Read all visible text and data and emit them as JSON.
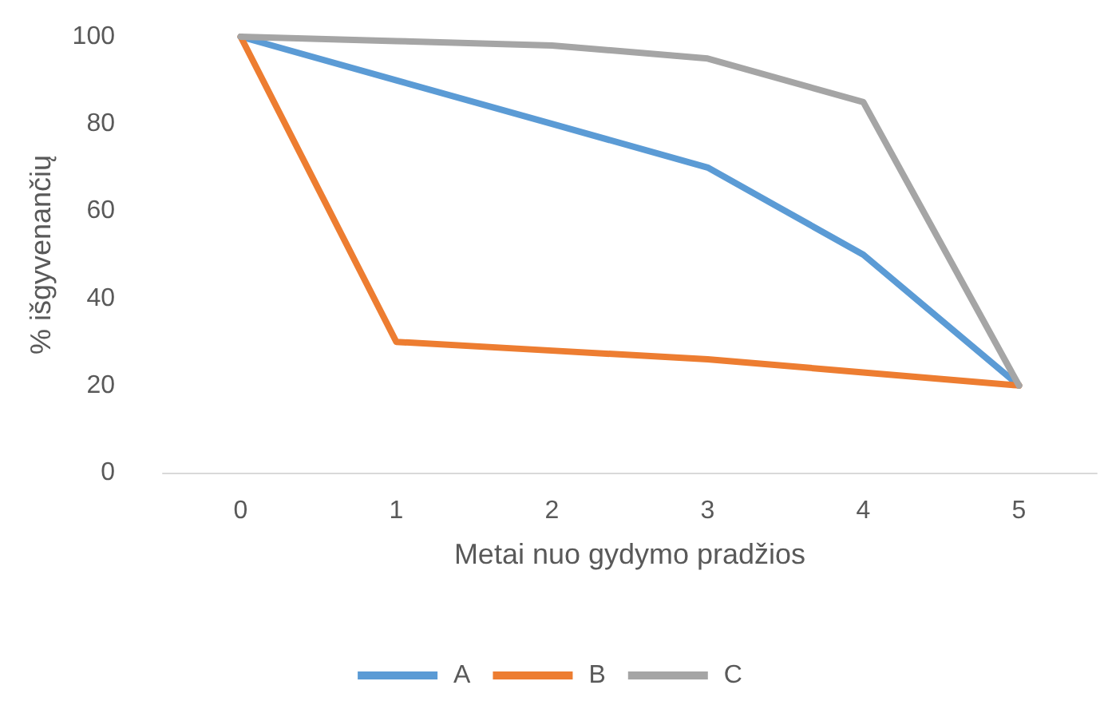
{
  "chart_data": {
    "type": "line",
    "xlabel": "Metai nuo gydymo pradžios",
    "ylabel": "% išgyvenančių",
    "categories": [
      "0",
      "1",
      "2",
      "3",
      "4",
      "5"
    ],
    "series": [
      {
        "name": "A",
        "color": "#5b9bd5",
        "values": [
          100,
          90,
          80,
          70,
          50,
          20
        ]
      },
      {
        "name": "B",
        "color": "#ed7d31",
        "values": [
          100,
          30,
          28,
          26,
          23,
          20
        ]
      },
      {
        "name": "C",
        "color": "#a5a5a5",
        "values": [
          100,
          99,
          98,
          95,
          85,
          20
        ]
      }
    ],
    "ylim": [
      0,
      100
    ],
    "yticks": [
      0,
      20,
      40,
      60,
      80,
      100
    ],
    "grid": false,
    "legend": "bottom",
    "marker": "none",
    "line_style": "solid"
  }
}
